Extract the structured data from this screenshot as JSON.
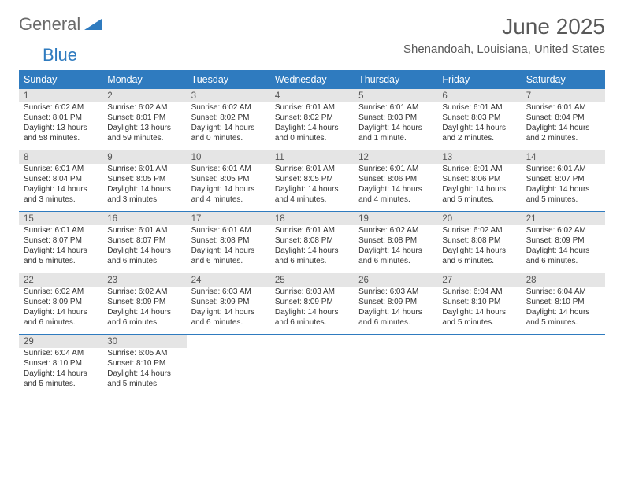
{
  "logo": {
    "text1": "General",
    "text2": "Blue"
  },
  "title": "June 2025",
  "subtitle": "Shenandoah, Louisiana, United States",
  "colors": {
    "header_bg": "#2f7bbf",
    "header_text": "#ffffff",
    "daynum_bg": "#e5e5e5",
    "border": "#2f7bbf",
    "text": "#333333",
    "title_color": "#595959"
  },
  "weekdays": [
    "Sunday",
    "Monday",
    "Tuesday",
    "Wednesday",
    "Thursday",
    "Friday",
    "Saturday"
  ],
  "weeks": [
    [
      {
        "n": "1",
        "sr": "Sunrise: 6:02 AM",
        "ss": "Sunset: 8:01 PM",
        "d1": "Daylight: 13 hours",
        "d2": "and 58 minutes."
      },
      {
        "n": "2",
        "sr": "Sunrise: 6:02 AM",
        "ss": "Sunset: 8:01 PM",
        "d1": "Daylight: 13 hours",
        "d2": "and 59 minutes."
      },
      {
        "n": "3",
        "sr": "Sunrise: 6:02 AM",
        "ss": "Sunset: 8:02 PM",
        "d1": "Daylight: 14 hours",
        "d2": "and 0 minutes."
      },
      {
        "n": "4",
        "sr": "Sunrise: 6:01 AM",
        "ss": "Sunset: 8:02 PM",
        "d1": "Daylight: 14 hours",
        "d2": "and 0 minutes."
      },
      {
        "n": "5",
        "sr": "Sunrise: 6:01 AM",
        "ss": "Sunset: 8:03 PM",
        "d1": "Daylight: 14 hours",
        "d2": "and 1 minute."
      },
      {
        "n": "6",
        "sr": "Sunrise: 6:01 AM",
        "ss": "Sunset: 8:03 PM",
        "d1": "Daylight: 14 hours",
        "d2": "and 2 minutes."
      },
      {
        "n": "7",
        "sr": "Sunrise: 6:01 AM",
        "ss": "Sunset: 8:04 PM",
        "d1": "Daylight: 14 hours",
        "d2": "and 2 minutes."
      }
    ],
    [
      {
        "n": "8",
        "sr": "Sunrise: 6:01 AM",
        "ss": "Sunset: 8:04 PM",
        "d1": "Daylight: 14 hours",
        "d2": "and 3 minutes."
      },
      {
        "n": "9",
        "sr": "Sunrise: 6:01 AM",
        "ss": "Sunset: 8:05 PM",
        "d1": "Daylight: 14 hours",
        "d2": "and 3 minutes."
      },
      {
        "n": "10",
        "sr": "Sunrise: 6:01 AM",
        "ss": "Sunset: 8:05 PM",
        "d1": "Daylight: 14 hours",
        "d2": "and 4 minutes."
      },
      {
        "n": "11",
        "sr": "Sunrise: 6:01 AM",
        "ss": "Sunset: 8:05 PM",
        "d1": "Daylight: 14 hours",
        "d2": "and 4 minutes."
      },
      {
        "n": "12",
        "sr": "Sunrise: 6:01 AM",
        "ss": "Sunset: 8:06 PM",
        "d1": "Daylight: 14 hours",
        "d2": "and 4 minutes."
      },
      {
        "n": "13",
        "sr": "Sunrise: 6:01 AM",
        "ss": "Sunset: 8:06 PM",
        "d1": "Daylight: 14 hours",
        "d2": "and 5 minutes."
      },
      {
        "n": "14",
        "sr": "Sunrise: 6:01 AM",
        "ss": "Sunset: 8:07 PM",
        "d1": "Daylight: 14 hours",
        "d2": "and 5 minutes."
      }
    ],
    [
      {
        "n": "15",
        "sr": "Sunrise: 6:01 AM",
        "ss": "Sunset: 8:07 PM",
        "d1": "Daylight: 14 hours",
        "d2": "and 5 minutes."
      },
      {
        "n": "16",
        "sr": "Sunrise: 6:01 AM",
        "ss": "Sunset: 8:07 PM",
        "d1": "Daylight: 14 hours",
        "d2": "and 6 minutes."
      },
      {
        "n": "17",
        "sr": "Sunrise: 6:01 AM",
        "ss": "Sunset: 8:08 PM",
        "d1": "Daylight: 14 hours",
        "d2": "and 6 minutes."
      },
      {
        "n": "18",
        "sr": "Sunrise: 6:01 AM",
        "ss": "Sunset: 8:08 PM",
        "d1": "Daylight: 14 hours",
        "d2": "and 6 minutes."
      },
      {
        "n": "19",
        "sr": "Sunrise: 6:02 AM",
        "ss": "Sunset: 8:08 PM",
        "d1": "Daylight: 14 hours",
        "d2": "and 6 minutes."
      },
      {
        "n": "20",
        "sr": "Sunrise: 6:02 AM",
        "ss": "Sunset: 8:08 PM",
        "d1": "Daylight: 14 hours",
        "d2": "and 6 minutes."
      },
      {
        "n": "21",
        "sr": "Sunrise: 6:02 AM",
        "ss": "Sunset: 8:09 PM",
        "d1": "Daylight: 14 hours",
        "d2": "and 6 minutes."
      }
    ],
    [
      {
        "n": "22",
        "sr": "Sunrise: 6:02 AM",
        "ss": "Sunset: 8:09 PM",
        "d1": "Daylight: 14 hours",
        "d2": "and 6 minutes."
      },
      {
        "n": "23",
        "sr": "Sunrise: 6:02 AM",
        "ss": "Sunset: 8:09 PM",
        "d1": "Daylight: 14 hours",
        "d2": "and 6 minutes."
      },
      {
        "n": "24",
        "sr": "Sunrise: 6:03 AM",
        "ss": "Sunset: 8:09 PM",
        "d1": "Daylight: 14 hours",
        "d2": "and 6 minutes."
      },
      {
        "n": "25",
        "sr": "Sunrise: 6:03 AM",
        "ss": "Sunset: 8:09 PM",
        "d1": "Daylight: 14 hours",
        "d2": "and 6 minutes."
      },
      {
        "n": "26",
        "sr": "Sunrise: 6:03 AM",
        "ss": "Sunset: 8:09 PM",
        "d1": "Daylight: 14 hours",
        "d2": "and 6 minutes."
      },
      {
        "n": "27",
        "sr": "Sunrise: 6:04 AM",
        "ss": "Sunset: 8:10 PM",
        "d1": "Daylight: 14 hours",
        "d2": "and 5 minutes."
      },
      {
        "n": "28",
        "sr": "Sunrise: 6:04 AM",
        "ss": "Sunset: 8:10 PM",
        "d1": "Daylight: 14 hours",
        "d2": "and 5 minutes."
      }
    ],
    [
      {
        "n": "29",
        "sr": "Sunrise: 6:04 AM",
        "ss": "Sunset: 8:10 PM",
        "d1": "Daylight: 14 hours",
        "d2": "and 5 minutes."
      },
      {
        "n": "30",
        "sr": "Sunrise: 6:05 AM",
        "ss": "Sunset: 8:10 PM",
        "d1": "Daylight: 14 hours",
        "d2": "and 5 minutes."
      },
      null,
      null,
      null,
      null,
      null
    ]
  ]
}
